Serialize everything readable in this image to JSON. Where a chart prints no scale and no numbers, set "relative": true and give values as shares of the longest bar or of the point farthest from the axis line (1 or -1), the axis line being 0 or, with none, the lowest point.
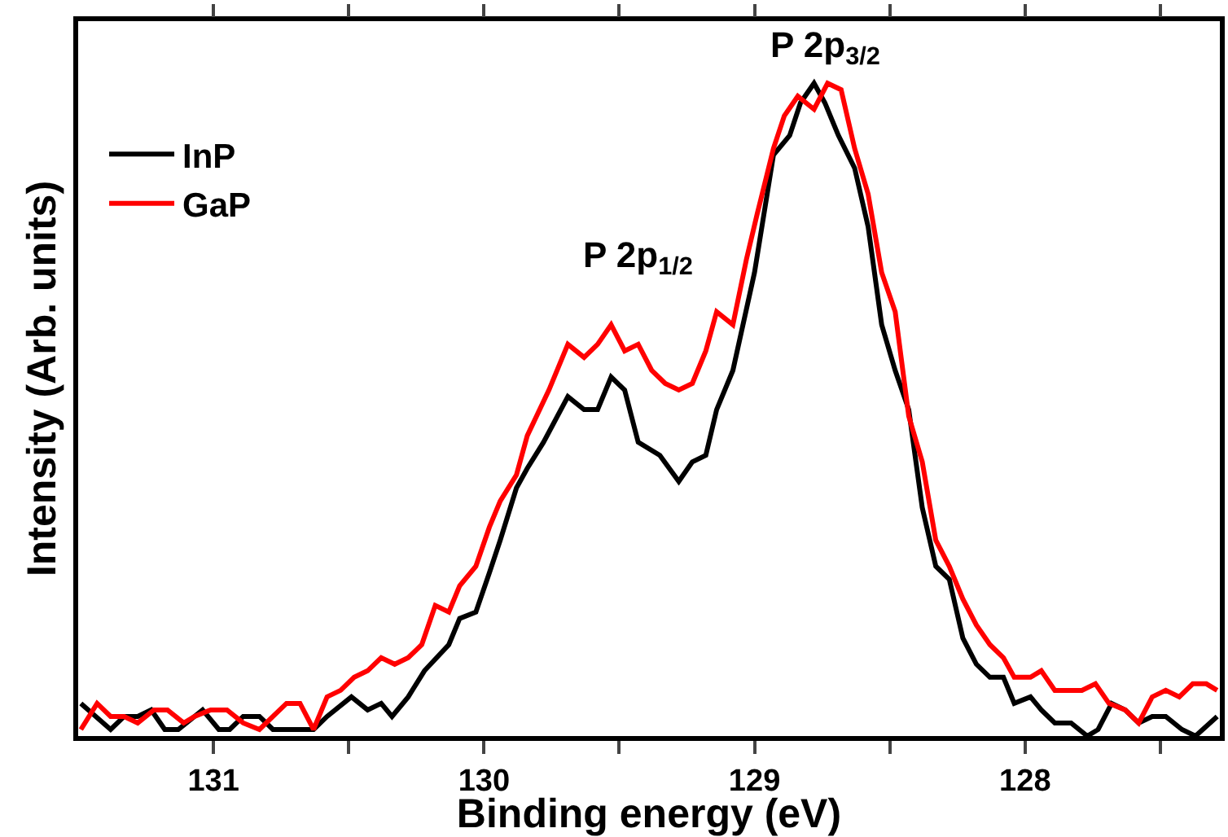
{
  "chart_data": {
    "type": "line",
    "relative": true,
    "xlabel": "Binding energy (eV)",
    "ylabel": "Intensity (Arb. units)",
    "xlim": [
      131.5,
      127.28
    ],
    "xticks": [
      131,
      {
        "value": 130.5,
        "label": null
      },
      130,
      {
        "value": 129.5,
        "label": null
      },
      129,
      {
        "value": 128.5,
        "label": null
      },
      128,
      {
        "value": 127.5,
        "label": null
      }
    ],
    "legend": "top left",
    "marker": "none",
    "line_style": "solid",
    "annotations": [
      "P 2p$_{1/2}$",
      "P 2p$_{3/2}$"
    ],
    "series": [
      {
        "name": "InP",
        "color": "#000000",
        "x": [
          131.49,
          131.38,
          131.33,
          131.28,
          131.23,
          131.18,
          131.13,
          131.04,
          130.98,
          130.94,
          130.89,
          130.83,
          130.78,
          130.68,
          130.63,
          130.58,
          130.49,
          130.43,
          130.38,
          130.34,
          130.28,
          130.22,
          130.13,
          130.09,
          130.03,
          129.98,
          129.94,
          129.88,
          129.84,
          129.78,
          129.69,
          129.63,
          129.58,
          129.53,
          129.48,
          129.43,
          129.35,
          129.28,
          129.23,
          129.18,
          129.14,
          129.08,
          129.0,
          128.93,
          128.87,
          128.83,
          128.78,
          128.74,
          128.69,
          128.63,
          128.58,
          128.53,
          128.48,
          128.43,
          128.38,
          128.33,
          128.28,
          128.23,
          128.18,
          128.13,
          128.08,
          128.04,
          127.98,
          127.94,
          127.89,
          127.83,
          127.77,
          127.73,
          127.68,
          127.63,
          127.58,
          127.53,
          127.48,
          127.42,
          127.37,
          127.29
        ],
        "values": [
          0.05,
          0.01,
          0.03,
          0.03,
          0.04,
          0.01,
          0.01,
          0.04,
          0.01,
          0.01,
          0.03,
          0.03,
          0.01,
          0.01,
          0.01,
          0.03,
          0.06,
          0.04,
          0.05,
          0.03,
          0.06,
          0.1,
          0.14,
          0.18,
          0.19,
          0.25,
          0.3,
          0.38,
          0.41,
          0.45,
          0.52,
          0.5,
          0.5,
          0.55,
          0.53,
          0.45,
          0.43,
          0.39,
          0.42,
          0.43,
          0.5,
          0.56,
          0.71,
          0.89,
          0.92,
          0.97,
          1.0,
          0.97,
          0.92,
          0.87,
          0.78,
          0.63,
          0.56,
          0.5,
          0.35,
          0.26,
          0.24,
          0.15,
          0.11,
          0.09,
          0.09,
          0.05,
          0.06,
          0.04,
          0.02,
          0.02,
          0.0,
          0.01,
          0.05,
          0.04,
          0.02,
          0.03,
          0.03,
          0.01,
          0.0,
          0.03
        ]
      },
      {
        "name": "GaP",
        "color": "#ff0000",
        "x": [
          131.49,
          131.43,
          131.38,
          131.33,
          131.28,
          131.22,
          131.17,
          131.11,
          131.07,
          131.01,
          130.95,
          130.89,
          130.83,
          130.78,
          130.73,
          130.68,
          130.63,
          130.58,
          130.53,
          130.48,
          130.43,
          130.38,
          130.33,
          130.28,
          130.23,
          130.18,
          130.13,
          130.09,
          130.03,
          129.98,
          129.94,
          129.88,
          129.84,
          129.76,
          129.69,
          129.63,
          129.58,
          129.53,
          129.48,
          129.43,
          129.38,
          129.33,
          129.28,
          129.23,
          129.18,
          129.14,
          129.08,
          129.03,
          128.99,
          128.93,
          128.89,
          128.84,
          128.78,
          128.73,
          128.68,
          128.63,
          128.58,
          128.53,
          128.48,
          128.43,
          128.38,
          128.33,
          128.28,
          128.23,
          128.18,
          128.13,
          128.08,
          128.04,
          127.98,
          127.94,
          127.89,
          127.83,
          127.79,
          127.74,
          127.69,
          127.63,
          127.58,
          127.53,
          127.48,
          127.43,
          127.38,
          127.33,
          127.29
        ],
        "values": [
          0.01,
          0.05,
          0.03,
          0.03,
          0.02,
          0.04,
          0.04,
          0.02,
          0.03,
          0.04,
          0.04,
          0.02,
          0.01,
          0.03,
          0.05,
          0.05,
          0.01,
          0.06,
          0.07,
          0.09,
          0.1,
          0.12,
          0.11,
          0.12,
          0.14,
          0.2,
          0.19,
          0.23,
          0.26,
          0.32,
          0.36,
          0.4,
          0.46,
          0.53,
          0.6,
          0.58,
          0.6,
          0.63,
          0.59,
          0.6,
          0.56,
          0.54,
          0.53,
          0.54,
          0.59,
          0.65,
          0.63,
          0.73,
          0.8,
          0.9,
          0.95,
          0.98,
          0.96,
          1.0,
          0.99,
          0.9,
          0.83,
          0.71,
          0.65,
          0.49,
          0.42,
          0.3,
          0.26,
          0.21,
          0.17,
          0.14,
          0.12,
          0.09,
          0.09,
          0.1,
          0.07,
          0.07,
          0.07,
          0.08,
          0.05,
          0.04,
          0.02,
          0.06,
          0.07,
          0.06,
          0.08,
          0.08,
          0.07
        ]
      }
    ]
  }
}
